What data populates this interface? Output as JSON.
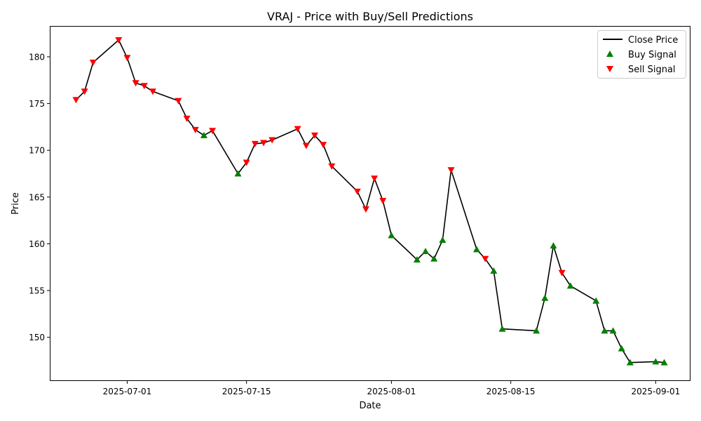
{
  "chart_data": {
    "type": "line",
    "title": "VRAJ - Price with Buy/Sell Predictions",
    "xlabel": "Date",
    "ylabel": "Price",
    "x_range": [
      "2025-06-22",
      "2025-09-05"
    ],
    "ylim": [
      145.4,
      183.3
    ],
    "x_ticks": [
      "2025-07-01",
      "2025-07-15",
      "2025-08-01",
      "2025-08-15",
      "2025-09-01"
    ],
    "y_ticks": [
      150,
      155,
      160,
      165,
      170,
      175,
      180
    ],
    "grid": false,
    "legend_position": "upper right",
    "colors": {
      "close": "#000000",
      "buy": "#008000",
      "sell": "#ff0000"
    },
    "series": [
      {
        "name": "Close Price",
        "style": "line",
        "points": [
          [
            "2025-06-25",
            175.4
          ],
          [
            "2025-06-26",
            176.3
          ],
          [
            "2025-06-27",
            179.4
          ],
          [
            "2025-06-30",
            181.8
          ],
          [
            "2025-07-01",
            179.9
          ],
          [
            "2025-07-02",
            177.2
          ],
          [
            "2025-07-03",
            176.9
          ],
          [
            "2025-07-04",
            176.3
          ],
          [
            "2025-07-07",
            175.3
          ],
          [
            "2025-07-08",
            173.4
          ],
          [
            "2025-07-09",
            172.2
          ],
          [
            "2025-07-10",
            171.6
          ],
          [
            "2025-07-11",
            172.1
          ],
          [
            "2025-07-14",
            167.5
          ],
          [
            "2025-07-15",
            168.7
          ],
          [
            "2025-07-16",
            170.7
          ],
          [
            "2025-07-17",
            170.8
          ],
          [
            "2025-07-18",
            171.1
          ],
          [
            "2025-07-21",
            172.3
          ],
          [
            "2025-07-22",
            170.5
          ],
          [
            "2025-07-23",
            171.6
          ],
          [
            "2025-07-24",
            170.6
          ],
          [
            "2025-07-25",
            168.3
          ],
          [
            "2025-07-28",
            165.6
          ],
          [
            "2025-07-29",
            163.7
          ],
          [
            "2025-07-30",
            167.0
          ],
          [
            "2025-07-31",
            164.6
          ],
          [
            "2025-08-01",
            160.9
          ],
          [
            "2025-08-04",
            158.3
          ],
          [
            "2025-08-05",
            159.2
          ],
          [
            "2025-08-06",
            158.4
          ],
          [
            "2025-08-07",
            160.4
          ],
          [
            "2025-08-08",
            167.9
          ],
          [
            "2025-08-11",
            159.4
          ],
          [
            "2025-08-12",
            158.4
          ],
          [
            "2025-08-13",
            157.1
          ],
          [
            "2025-08-14",
            150.9
          ],
          [
            "2025-08-18",
            150.7
          ],
          [
            "2025-08-19",
            154.2
          ],
          [
            "2025-08-20",
            159.8
          ],
          [
            "2025-08-21",
            156.9
          ],
          [
            "2025-08-22",
            155.5
          ],
          [
            "2025-08-25",
            153.9
          ],
          [
            "2025-08-26",
            150.7
          ],
          [
            "2025-08-27",
            150.7
          ],
          [
            "2025-08-28",
            148.8
          ],
          [
            "2025-08-29",
            147.3
          ],
          [
            "2025-09-01",
            147.4
          ],
          [
            "2025-09-02",
            147.3
          ]
        ]
      },
      {
        "name": "Buy Signal",
        "style": "marker-up",
        "points": [
          [
            "2025-07-10",
            171.6
          ],
          [
            "2025-07-14",
            167.5
          ],
          [
            "2025-08-01",
            160.9
          ],
          [
            "2025-08-04",
            158.3
          ],
          [
            "2025-08-05",
            159.2
          ],
          [
            "2025-08-06",
            158.4
          ],
          [
            "2025-08-07",
            160.4
          ],
          [
            "2025-08-11",
            159.4
          ],
          [
            "2025-08-13",
            157.1
          ],
          [
            "2025-08-14",
            150.9
          ],
          [
            "2025-08-18",
            150.7
          ],
          [
            "2025-08-19",
            154.2
          ],
          [
            "2025-08-20",
            159.8
          ],
          [
            "2025-08-22",
            155.5
          ],
          [
            "2025-08-25",
            153.9
          ],
          [
            "2025-08-26",
            150.7
          ],
          [
            "2025-08-27",
            150.7
          ],
          [
            "2025-08-28",
            148.8
          ],
          [
            "2025-08-29",
            147.3
          ],
          [
            "2025-09-01",
            147.4
          ],
          [
            "2025-09-02",
            147.3
          ]
        ]
      },
      {
        "name": "Sell Signal",
        "style": "marker-down",
        "points": [
          [
            "2025-06-25",
            175.4
          ],
          [
            "2025-06-26",
            176.3
          ],
          [
            "2025-06-27",
            179.4
          ],
          [
            "2025-06-30",
            181.8
          ],
          [
            "2025-07-01",
            179.9
          ],
          [
            "2025-07-02",
            177.2
          ],
          [
            "2025-07-03",
            176.9
          ],
          [
            "2025-07-04",
            176.3
          ],
          [
            "2025-07-07",
            175.3
          ],
          [
            "2025-07-08",
            173.4
          ],
          [
            "2025-07-09",
            172.2
          ],
          [
            "2025-07-11",
            172.1
          ],
          [
            "2025-07-15",
            168.7
          ],
          [
            "2025-07-16",
            170.7
          ],
          [
            "2025-07-17",
            170.8
          ],
          [
            "2025-07-18",
            171.1
          ],
          [
            "2025-07-21",
            172.3
          ],
          [
            "2025-07-22",
            170.5
          ],
          [
            "2025-07-23",
            171.6
          ],
          [
            "2025-07-24",
            170.6
          ],
          [
            "2025-07-25",
            168.3
          ],
          [
            "2025-07-28",
            165.6
          ],
          [
            "2025-07-29",
            163.7
          ],
          [
            "2025-07-30",
            167.0
          ],
          [
            "2025-07-31",
            164.6
          ],
          [
            "2025-08-08",
            167.9
          ],
          [
            "2025-08-12",
            158.4
          ],
          [
            "2025-08-21",
            156.9
          ]
        ]
      }
    ]
  }
}
